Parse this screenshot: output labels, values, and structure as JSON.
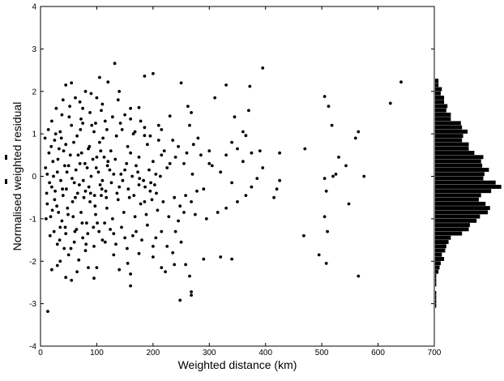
{
  "chart_data": [
    {
      "type": "scatter",
      "title": "",
      "xlabel": "Weighted distance (km)",
      "ylabel": "Normalised weighted residual",
      "xlim": [
        0,
        700
      ],
      "ylim": [
        -4,
        4
      ],
      "xticks": [
        0,
        100,
        200,
        300,
        400,
        500,
        600,
        700
      ],
      "yticks": [
        -4,
        -3,
        -2,
        -1,
        0,
        1,
        2,
        3,
        4
      ],
      "grid": false,
      "marker_color": "#000000",
      "points": [
        [
          13,
          -3.18
        ],
        [
          120,
          2.22
        ],
        [
          132,
          2.66
        ],
        [
          185,
          2.36
        ],
        [
          200,
          2.42
        ],
        [
          105,
          2.33
        ],
        [
          45,
          2.15
        ],
        [
          55,
          2.2
        ],
        [
          80,
          2.0
        ],
        [
          90,
          1.95
        ],
        [
          75,
          1.6
        ],
        [
          110,
          1.7
        ],
        [
          138,
          1.8
        ],
        [
          150,
          1.45
        ],
        [
          175,
          1.62
        ],
        [
          185,
          1.15
        ],
        [
          230,
          1.42
        ],
        [
          210,
          1.2
        ],
        [
          185,
          0.96
        ],
        [
          250,
          2.2
        ],
        [
          262,
          1.65
        ],
        [
          268,
          1.5
        ],
        [
          272,
          0.75
        ],
        [
          265,
          1.2
        ],
        [
          285,
          0.5
        ],
        [
          330,
          2.15
        ],
        [
          345,
          1.4
        ],
        [
          360,
          1.05
        ],
        [
          365,
          0.96
        ],
        [
          370,
          1.55
        ],
        [
          372,
          2.12
        ],
        [
          395,
          2.55
        ],
        [
          310,
          1.85
        ],
        [
          300,
          0.3
        ],
        [
          330,
          0.5
        ],
        [
          340,
          0.8
        ],
        [
          350,
          0.65
        ],
        [
          360,
          0.35
        ],
        [
          375,
          0.55
        ],
        [
          390,
          0.6
        ],
        [
          425,
          0.55
        ],
        [
          470,
          0.65
        ],
        [
          505,
          1.88
        ],
        [
          512,
          1.65
        ],
        [
          518,
          1.2
        ],
        [
          530,
          0.45
        ],
        [
          543,
          0.25
        ],
        [
          525,
          0.05
        ],
        [
          560,
          0.9
        ],
        [
          565,
          1.05
        ],
        [
          575,
          0.0
        ],
        [
          505,
          -0.05
        ],
        [
          508,
          -0.35
        ],
        [
          520,
          0.0
        ],
        [
          548,
          -0.65
        ],
        [
          622,
          1.72
        ],
        [
          641,
          2.22
        ],
        [
          425,
          -0.1
        ],
        [
          420,
          -0.3
        ],
        [
          415,
          -0.5
        ],
        [
          468,
          -1.4
        ],
        [
          495,
          -1.85
        ],
        [
          508,
          -2.05
        ],
        [
          505,
          -0.95
        ],
        [
          510,
          -1.3
        ],
        [
          565,
          -2.35
        ],
        [
          320,
          -1.9
        ],
        [
          340,
          -1.95
        ],
        [
          290,
          -1.95
        ],
        [
          258,
          -2.08
        ],
        [
          265,
          -2.35
        ],
        [
          268,
          -2.72
        ],
        [
          268,
          -2.8
        ],
        [
          248,
          -2.92
        ],
        [
          238,
          -2.08
        ],
        [
          222,
          -2.25
        ],
        [
          215,
          -2.15
        ],
        [
          200,
          -1.9
        ],
        [
          175,
          -1.82
        ],
        [
          160,
          -2.58
        ],
        [
          160,
          -2.3
        ],
        [
          155,
          -2.05
        ],
        [
          140,
          -2.2
        ],
        [
          130,
          -1.85
        ],
        [
          115,
          -1.55
        ],
        [
          100,
          -2.15
        ],
        [
          85,
          -2.15
        ],
        [
          68,
          -1.97
        ],
        [
          55,
          -2.45
        ],
        [
          45,
          -2.38
        ],
        [
          30,
          -2.1
        ],
        [
          20,
          -2.2
        ],
        [
          30,
          -1.6
        ],
        [
          45,
          -1.35
        ],
        [
          60,
          -1.55
        ],
        [
          75,
          -1.45
        ],
        [
          95,
          -1.65
        ],
        [
          110,
          -1.5
        ],
        [
          130,
          -1.35
        ],
        [
          150,
          -1.45
        ],
        [
          170,
          -1.3
        ],
        [
          190,
          -1.15
        ],
        [
          205,
          -1.45
        ],
        [
          225,
          -1.65
        ],
        [
          240,
          -1.3
        ],
        [
          245,
          -1.05
        ],
        [
          255,
          -0.85
        ],
        [
          275,
          -0.9
        ],
        [
          295,
          -1.0
        ],
        [
          315,
          -0.85
        ],
        [
          330,
          -0.75
        ],
        [
          350,
          -0.6
        ],
        [
          365,
          -0.45
        ],
        [
          375,
          -0.25
        ],
        [
          385,
          -0.05
        ],
        [
          395,
          0.2
        ],
        [
          340,
          -0.15
        ],
        [
          320,
          0.1
        ],
        [
          305,
          0.25
        ],
        [
          290,
          -0.3
        ],
        [
          270,
          0.05
        ],
        [
          255,
          0.3
        ],
        [
          240,
          0.45
        ],
        [
          225,
          0.2
        ],
        [
          215,
          0.5
        ],
        [
          205,
          0.05
        ],
        [
          195,
          -0.35
        ],
        [
          185,
          -0.6
        ],
        [
          175,
          -0.2
        ],
        [
          170,
          0.25
        ],
        [
          160,
          0.55
        ],
        [
          150,
          0.15
        ],
        [
          140,
          -0.25
        ],
        [
          130,
          0.05
        ],
        [
          120,
          0.35
        ],
        [
          110,
          -0.1
        ],
        [
          100,
          0.45
        ],
        [
          90,
          0.0
        ],
        [
          80,
          -0.35
        ],
        [
          70,
          0.3
        ],
        [
          60,
          -0.15
        ],
        [
          50,
          0.25
        ],
        [
          40,
          -0.45
        ],
        [
          30,
          0.1
        ],
        [
          20,
          -0.25
        ],
        [
          12,
          0.05
        ],
        [
          15,
          0.55
        ],
        [
          25,
          0.85
        ],
        [
          35,
          1.05
        ],
        [
          45,
          0.75
        ],
        [
          55,
          1.2
        ],
        [
          65,
          0.95
        ],
        [
          75,
          1.25
        ],
        [
          85,
          0.65
        ],
        [
          95,
          1.05
        ],
        [
          105,
          0.8
        ],
        [
          115,
          1.3
        ],
        [
          125,
          0.6
        ],
        [
          135,
          0.95
        ],
        [
          145,
          1.1
        ],
        [
          155,
          0.7
        ],
        [
          165,
          1.0
        ],
        [
          175,
          0.45
        ],
        [
          190,
          0.75
        ],
        [
          200,
          0.35
        ],
        [
          210,
          0.85
        ],
        [
          220,
          0.6
        ],
        [
          230,
          0.3
        ],
        [
          245,
          0.7
        ],
        [
          260,
          0.55
        ],
        [
          12,
          -0.65
        ],
        [
          18,
          -0.95
        ],
        [
          25,
          -0.55
        ],
        [
          32,
          -0.85
        ],
        [
          38,
          -1.05
        ],
        [
          48,
          -0.75
        ],
        [
          58,
          -0.95
        ],
        [
          62,
          -0.5
        ],
        [
          72,
          -0.85
        ],
        [
          82,
          -1.1
        ],
        [
          88,
          -0.6
        ],
        [
          98,
          -0.9
        ],
        [
          108,
          -0.45
        ],
        [
          118,
          -0.75
        ],
        [
          128,
          -1.0
        ],
        [
          138,
          -0.55
        ],
        [
          148,
          -0.85
        ],
        [
          158,
          -0.5
        ],
        [
          168,
          -0.95
        ],
        [
          178,
          -0.65
        ],
        [
          188,
          -0.9
        ],
        [
          198,
          -0.55
        ],
        [
          208,
          -0.8
        ],
        [
          218,
          -0.6
        ],
        [
          228,
          -0.95
        ],
        [
          238,
          -0.5
        ],
        [
          248,
          -0.7
        ],
        [
          258,
          -0.45
        ],
        [
          268,
          -0.6
        ],
        [
          278,
          -0.35
        ],
        [
          20,
          1.3
        ],
        [
          28,
          1.6
        ],
        [
          38,
          1.45
        ],
        [
          52,
          1.65
        ],
        [
          62,
          1.85
        ],
        [
          72,
          1.35
        ],
        [
          88,
          1.5
        ],
        [
          98,
          1.25
        ],
        [
          108,
          1.55
        ],
        [
          118,
          1.1
        ],
        [
          128,
          1.4
        ],
        [
          142,
          1.25
        ],
        [
          160,
          1.35
        ],
        [
          168,
          1.05
        ],
        [
          178,
          1.3
        ],
        [
          195,
          0.95
        ],
        [
          215,
          1.1
        ],
        [
          235,
          0.85
        ],
        [
          280,
          0.9
        ],
        [
          300,
          0.6
        ],
        [
          22,
          0.35
        ],
        [
          33,
          0.65
        ],
        [
          43,
          0.25
        ],
        [
          53,
          0.5
        ],
        [
          63,
          0.15
        ],
        [
          73,
          0.55
        ],
        [
          83,
          0.2
        ],
        [
          93,
          0.4
        ],
        [
          103,
          0.1
        ],
        [
          113,
          0.45
        ],
        [
          123,
          0.15
        ],
        [
          133,
          0.4
        ],
        [
          143,
          0.05
        ],
        [
          153,
          0.3
        ],
        [
          163,
          0.0
        ],
        [
          173,
          0.1
        ],
        [
          183,
          -0.1
        ],
        [
          193,
          0.15
        ],
        [
          203,
          -0.2
        ],
        [
          213,
          0.0
        ],
        [
          16,
          -0.15
        ],
        [
          26,
          -0.35
        ],
        [
          36,
          -0.1
        ],
        [
          46,
          -0.3
        ],
        [
          56,
          -0.05
        ],
        [
          66,
          -0.4
        ],
        [
          76,
          -0.1
        ],
        [
          86,
          -0.25
        ],
        [
          96,
          -0.45
        ],
        [
          106,
          -0.2
        ],
        [
          116,
          -0.35
        ],
        [
          126,
          -0.15
        ],
        [
          136,
          -0.4
        ],
        [
          146,
          -0.1
        ],
        [
          156,
          -0.3
        ],
        [
          166,
          -0.45
        ],
        [
          176,
          -0.05
        ],
        [
          186,
          -0.25
        ],
        [
          196,
          -0.15
        ],
        [
          206,
          -0.4
        ],
        [
          24,
          -1.3
        ],
        [
          34,
          -1.5
        ],
        [
          44,
          -1.2
        ],
        [
          54,
          -1.7
        ],
        [
          64,
          -1.25
        ],
        [
          74,
          -1.1
        ],
        [
          84,
          -1.35
        ],
        [
          94,
          -1.2
        ],
        [
          104,
          -1.3
        ],
        [
          114,
          -1.1
        ],
        [
          124,
          -1.25
        ],
        [
          134,
          -1.6
        ],
        [
          144,
          -1.2
        ],
        [
          154,
          -1.7
        ],
        [
          164,
          -1.4
        ],
        [
          180,
          -1.5
        ],
        [
          200,
          -1.65
        ],
        [
          215,
          -1.3
        ],
        [
          235,
          -1.8
        ],
        [
          250,
          -1.55
        ],
        [
          8,
          0.9
        ],
        [
          10,
          -1.0
        ],
        [
          9,
          0.2
        ],
        [
          11,
          -0.4
        ],
        [
          14,
          1.1
        ],
        [
          17,
          -1.4
        ],
        [
          19,
          0.7
        ],
        [
          21,
          -0.8
        ],
        [
          23,
          0.0
        ],
        [
          27,
          1.0
        ],
        [
          29,
          -0.7
        ],
        [
          31,
          0.4
        ],
        [
          35,
          -1.2
        ],
        [
          37,
          0.9
        ],
        [
          39,
          -0.3
        ],
        [
          41,
          0.6
        ],
        [
          42,
          -1.7
        ],
        [
          47,
          0.1
        ],
        [
          49,
          -0.9
        ],
        [
          51,
          1.4
        ],
        [
          57,
          -0.6
        ],
        [
          59,
          0.8
        ],
        [
          61,
          -1.3
        ],
        [
          67,
          0.5
        ],
        [
          69,
          -0.2
        ],
        [
          71,
          1.1
        ],
        [
          77,
          -0.5
        ],
        [
          79,
          0.3
        ],
        [
          81,
          -1.6
        ],
        [
          87,
          0.7
        ],
        [
          89,
          -0.4
        ],
        [
          91,
          1.2
        ],
        [
          97,
          -0.7
        ],
        [
          99,
          0.2
        ],
        [
          101,
          -1.1
        ],
        [
          107,
          0.6
        ],
        [
          109,
          -0.3
        ],
        [
          111,
          0.9
        ],
        [
          117,
          -0.5
        ],
        [
          119,
          0.25
        ],
        [
          35,
          -2.0
        ],
        [
          50,
          -1.85
        ],
        [
          65,
          -2.25
        ],
        [
          80,
          -1.75
        ],
        [
          95,
          -2.4
        ],
        [
          40,
          1.8
        ],
        [
          70,
          1.75
        ],
        [
          100,
          1.85
        ],
        [
          140,
          2.0
        ],
        [
          160,
          1.6
        ]
      ]
    },
    {
      "type": "bar",
      "orientation": "horizontal",
      "title": "",
      "description_of_axis": "histogram of residuals on shared y axis",
      "bin_centers": [
        -3.05,
        -2.95,
        -2.85,
        -2.75,
        -2.65,
        -2.55,
        -2.45,
        -2.35,
        -2.25,
        -2.15,
        -2.05,
        -1.95,
        -1.85,
        -1.75,
        -1.65,
        -1.55,
        -1.45,
        -1.35,
        -1.25,
        -1.15,
        -1.05,
        -0.95,
        -0.85,
        -0.75,
        -0.65,
        -0.55,
        -0.45,
        -0.35,
        -0.25,
        -0.15,
        -0.05,
        0.05,
        0.15,
        0.25,
        0.35,
        0.45,
        0.55,
        0.65,
        0.75,
        0.85,
        0.95,
        1.05,
        1.15,
        1.25,
        1.35,
        1.45,
        1.55,
        1.65,
        1.75,
        1.85,
        1.95,
        2.05,
        2.15,
        2.25
      ],
      "counts": [
        1,
        1,
        1,
        1,
        0,
        1,
        1,
        1,
        3,
        4,
        5,
        8,
        6,
        9,
        10,
        12,
        14,
        24,
        30,
        31,
        37,
        40,
        47,
        49,
        45,
        39,
        41,
        50,
        59,
        54,
        43,
        44,
        48,
        42,
        41,
        43,
        35,
        30,
        30,
        24,
        25,
        29,
        24,
        23,
        14,
        14,
        10,
        11,
        8,
        8,
        5,
        6,
        3,
        3
      ],
      "xlim": [
        0,
        60
      ]
    }
  ]
}
